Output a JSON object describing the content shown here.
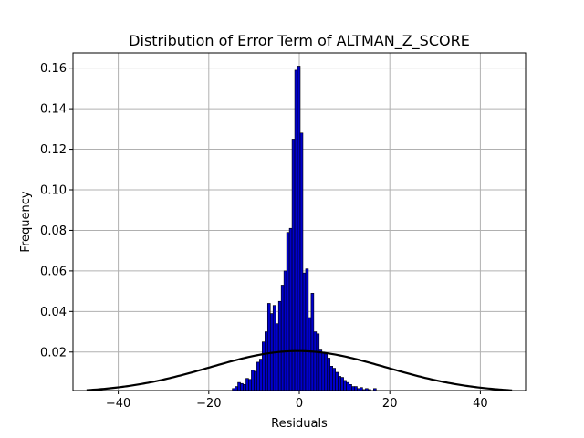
{
  "chart_data": {
    "type": "bar",
    "title": "Distribution of Error Term of ALTMAN_Z_SCORE",
    "xlabel": "Residuals",
    "ylabel": "Frequency",
    "xlim": [
      -50,
      50
    ],
    "ylim": [
      0.001,
      0.1675
    ],
    "x_ticks": [
      -40,
      -20,
      0,
      20,
      40
    ],
    "x_tick_labels": [
      "−40",
      "−20",
      "0",
      "20",
      "40"
    ],
    "y_ticks": [
      0.02,
      0.04,
      0.06,
      0.08,
      0.1,
      0.12,
      0.14,
      0.16
    ],
    "y_tick_labels": [
      "0.02",
      "0.04",
      "0.06",
      "0.08",
      "0.10",
      "0.12",
      "0.14",
      "0.16"
    ],
    "grid": true,
    "bar_color": "#0000cc",
    "bin_width": 0.6,
    "histogram": {
      "bin_starts": [
        -15.4,
        -14.8,
        -14.2,
        -13.6,
        -13.0,
        -12.4,
        -11.8,
        -11.2,
        -10.6,
        -10.0,
        -9.4,
        -8.8,
        -8.2,
        -7.6,
        -7.0,
        -6.4,
        -5.8,
        -5.2,
        -4.6,
        -4.0,
        -3.4,
        -2.8,
        -2.2,
        -1.6,
        -1.0,
        -0.4,
        0.2,
        0.8,
        1.4,
        2.0,
        2.6,
        3.2,
        3.8,
        4.4,
        5.0,
        5.6,
        6.2,
        6.8,
        7.4,
        8.0,
        8.6,
        9.2,
        9.8,
        10.4,
        11.0,
        11.6,
        12.2,
        12.8,
        13.4,
        14.0,
        14.6,
        15.2,
        15.8,
        16.4
      ],
      "values": [
        0.001,
        0.002,
        0.003,
        0.005,
        0.0045,
        0.004,
        0.007,
        0.0065,
        0.011,
        0.0105,
        0.015,
        0.0165,
        0.025,
        0.03,
        0.044,
        0.039,
        0.043,
        0.034,
        0.045,
        0.053,
        0.06,
        0.079,
        0.081,
        0.125,
        0.159,
        0.161,
        0.128,
        0.059,
        0.061,
        0.037,
        0.049,
        0.03,
        0.029,
        0.021,
        0.02,
        0.019,
        0.017,
        0.013,
        0.012,
        0.01,
        0.008,
        0.0075,
        0.006,
        0.005,
        0.004,
        0.003,
        0.003,
        0.002,
        0.0025,
        0.0015,
        0.002,
        0.0015,
        0.001,
        0.002
      ]
    },
    "normal_curve": {
      "color": "#000000",
      "mean": -0.3,
      "peak": 0.0205,
      "std": 19.5,
      "x_range": [
        -47,
        47
      ]
    }
  }
}
